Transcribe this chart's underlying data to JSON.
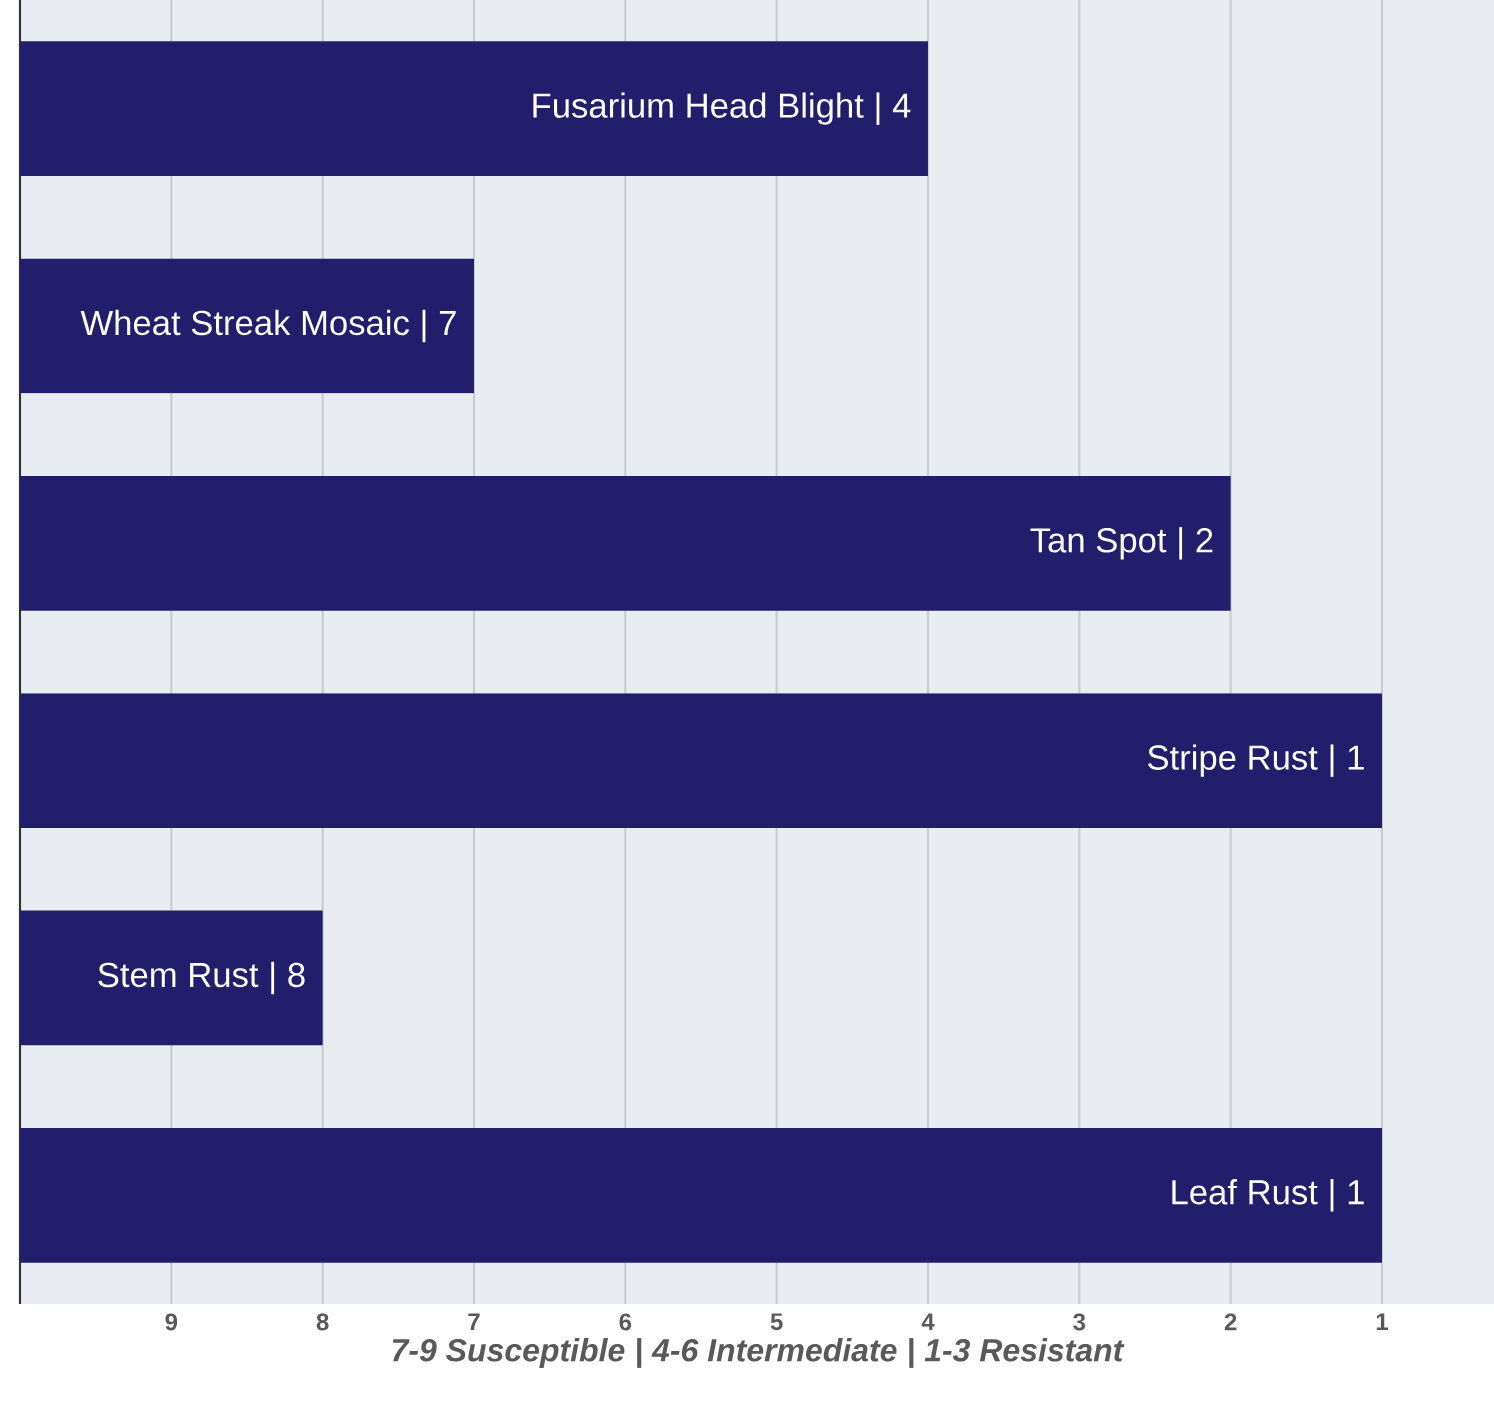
{
  "chart_data": {
    "type": "bar",
    "orientation": "horizontal",
    "categories": [
      null,
      null,
      null,
      null,
      null,
      null
    ],
    "base": [
      10,
      10,
      10,
      10,
      10,
      10
    ],
    "values": [
      -6,
      -3,
      -8,
      -9,
      -2,
      -9
    ],
    "annotations": [
      "Fusarium Head Blight | 4",
      "Wheat Streak Mosaic | 7",
      "Tan Spot | 2",
      "Stripe Rust | 1",
      "Stem Rust | 8",
      "Leaf Rust | 1"
    ],
    "color": "#231e6c",
    "xlim": [
      10,
      0.26
    ],
    "xticks": [
      9,
      8,
      7,
      6,
      5,
      4,
      3,
      2,
      1
    ],
    "xlabel": "7-9 Susceptible | 4-6 Intermediate | 1-3 Resistant",
    "grid": "x",
    "tick_labels": "x"
  }
}
